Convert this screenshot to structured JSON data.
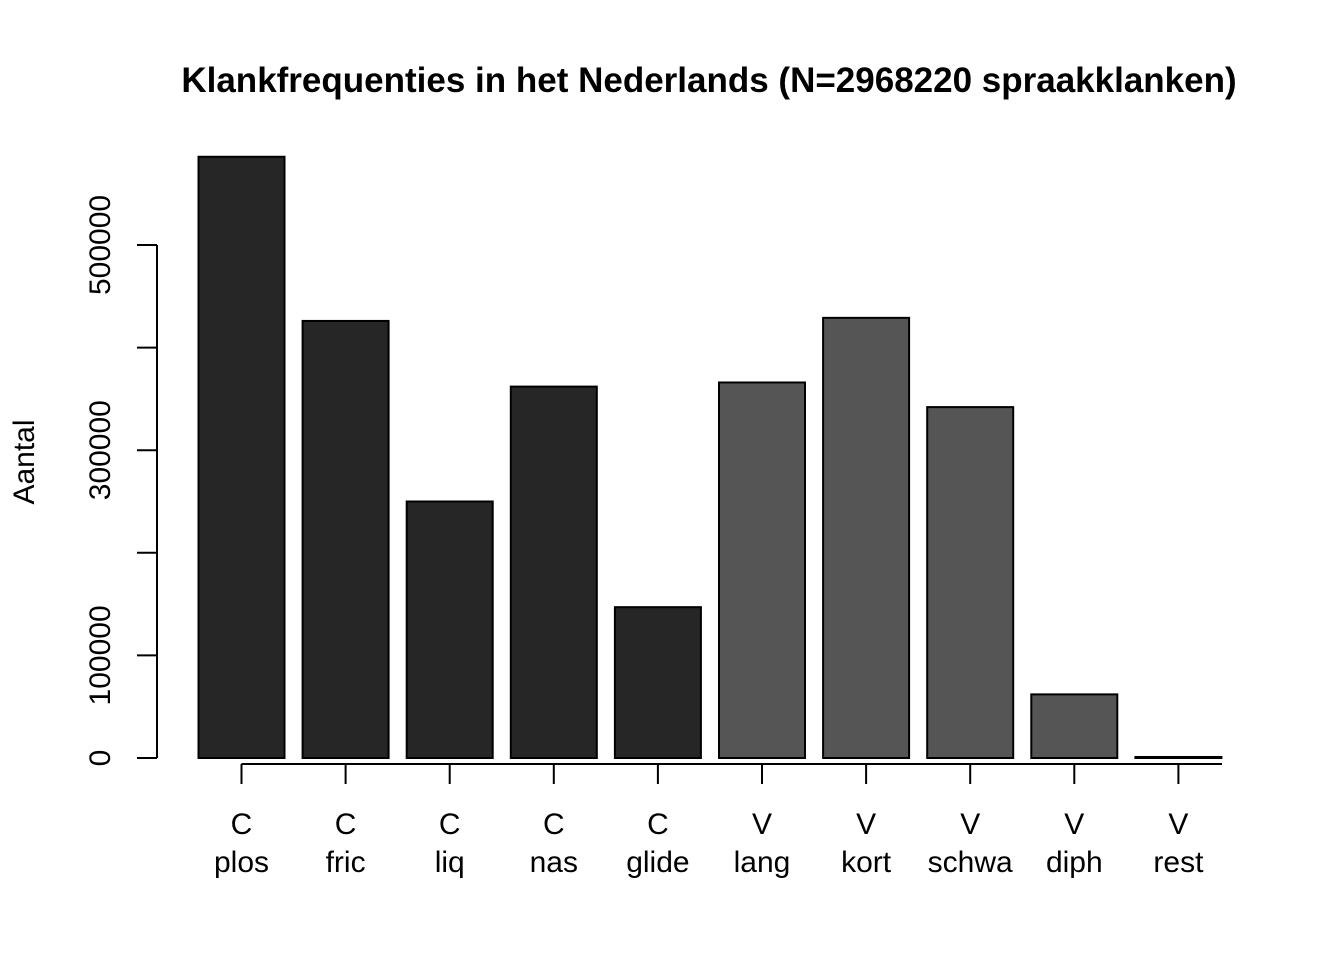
{
  "chart_data": {
    "type": "bar",
    "title": "Klankfrequenties in het Nederlands (N=2968220 spraakklanken)",
    "xlabel": "",
    "ylabel": "Aantal",
    "ylim": [
      0,
      600000
    ],
    "y_ticks": [
      0,
      100000,
      200000,
      300000,
      400000,
      500000
    ],
    "y_tick_labels": [
      "0",
      "100000",
      "",
      "300000",
      "",
      "500000"
    ],
    "categories": [
      {
        "group": "C",
        "label": "plos"
      },
      {
        "group": "C",
        "label": "fric"
      },
      {
        "group": "C",
        "label": "liq"
      },
      {
        "group": "C",
        "label": "nas"
      },
      {
        "group": "C",
        "label": "glide"
      },
      {
        "group": "V",
        "label": "lang"
      },
      {
        "group": "V",
        "label": "kort"
      },
      {
        "group": "V",
        "label": "schwa"
      },
      {
        "group": "V",
        "label": "diph"
      },
      {
        "group": "V",
        "label": "rest"
      }
    ],
    "values": [
      586000,
      426000,
      250000,
      362000,
      147000,
      366000,
      429000,
      342000,
      62000,
      1000
    ],
    "colors": {
      "C": "#262626",
      "V": "#555555"
    },
    "grid": false,
    "legend": "none"
  }
}
